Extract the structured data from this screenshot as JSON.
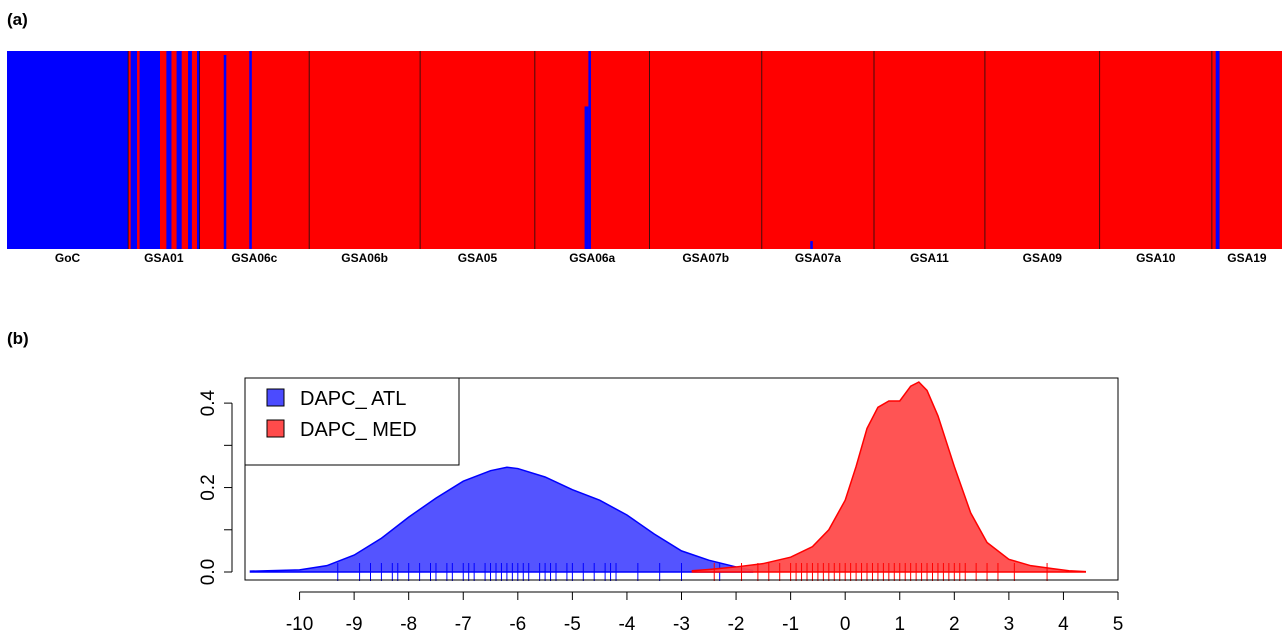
{
  "panels": {
    "a_label": "(a)",
    "b_label": "(b)"
  },
  "colors": {
    "atl": "#0000ff",
    "med": "#ff0000",
    "atl_fill": "#4b4bff",
    "med_fill": "#ff4b4b"
  },
  "chart_data": [
    {
      "type": "bar",
      "description": "structure barplot",
      "categories": [
        "GoC",
        "GSA01",
        "GSA06c",
        "GSA06b",
        "GSA05",
        "GSA06a",
        "GSA07b",
        "GSA07a",
        "GSA11",
        "GSA09",
        "GSA10",
        "GSA19"
      ],
      "ylim": [
        0,
        1
      ],
      "series": [
        {
          "name": "DAPC_ ATL",
          "color": "#0000ff"
        },
        {
          "name": "DAPC_ MED",
          "color": "#ff0000"
        }
      ],
      "atl_segments": [
        {
          "x0": 0.0,
          "x1": 0.095,
          "top": 1.0
        },
        {
          "x0": 0.097,
          "x1": 0.102,
          "top": 1.0
        },
        {
          "x0": 0.104,
          "x1": 0.12,
          "top": 1.0
        },
        {
          "x0": 0.125,
          "x1": 0.129,
          "top": 1.0
        },
        {
          "x0": 0.133,
          "x1": 0.137,
          "top": 1.0
        },
        {
          "x0": 0.142,
          "x1": 0.145,
          "top": 1.0
        },
        {
          "x0": 0.149,
          "x1": 0.151,
          "top": 1.0
        },
        {
          "x0": 0.17,
          "x1": 0.172,
          "top": 0.98
        },
        {
          "x0": 0.19,
          "x1": 0.192,
          "top": 1.0
        },
        {
          "x0": 0.453,
          "x1": 0.456,
          "top": 0.72
        },
        {
          "x0": 0.456,
          "x1": 0.458,
          "top": 1.0
        },
        {
          "x0": 0.63,
          "x1": 0.632,
          "top": 0.04
        },
        {
          "x0": 0.948,
          "x1": 0.951,
          "top": 1.0
        }
      ],
      "group_boundaries": [
        0.095,
        0.151,
        0.237,
        0.324,
        0.414,
        0.504,
        0.592,
        0.68,
        0.767,
        0.857,
        0.945
      ]
    },
    {
      "type": "area",
      "xlim": [
        -11,
        5
      ],
      "ylim": [
        0,
        0.45
      ],
      "xticks": [
        -10,
        -9,
        -8,
        -7,
        -6,
        -5,
        -4,
        -3,
        -2,
        -1,
        0,
        1,
        2,
        3,
        4,
        5
      ],
      "yticks": [
        0.0,
        0.2,
        0.4
      ],
      "ytick_labels": [
        "0.0",
        "0.2",
        "0.4"
      ],
      "legend_position": "top-left",
      "series": [
        {
          "name": "DAPC_ ATL",
          "x": [
            -10.9,
            -10.0,
            -9.5,
            -9.0,
            -8.5,
            -8.0,
            -7.5,
            -7.0,
            -6.5,
            -6.2,
            -6.0,
            -5.5,
            -5.0,
            -4.5,
            -4.0,
            -3.5,
            -3.0,
            -2.5,
            -2.0,
            -1.7
          ],
          "y": [
            0.002,
            0.005,
            0.015,
            0.04,
            0.08,
            0.13,
            0.175,
            0.215,
            0.24,
            0.248,
            0.245,
            0.225,
            0.195,
            0.17,
            0.135,
            0.09,
            0.05,
            0.028,
            0.012,
            0.004
          ],
          "rug": [
            -9.3,
            -8.9,
            -8.7,
            -8.5,
            -8.3,
            -8.2,
            -8.0,
            -7.8,
            -7.6,
            -7.5,
            -7.3,
            -7.2,
            -7.0,
            -6.9,
            -6.8,
            -6.6,
            -6.5,
            -6.4,
            -6.3,
            -6.2,
            -6.1,
            -6.0,
            -5.9,
            -5.8,
            -5.6,
            -5.5,
            -5.4,
            -5.3,
            -5.1,
            -5.0,
            -4.8,
            -4.6,
            -4.4,
            -4.3,
            -4.2,
            -3.8,
            -3.4,
            -3.0,
            -2.3
          ]
        },
        {
          "name": "DAPC_ MED",
          "x": [
            -2.8,
            -2.5,
            -2.0,
            -1.5,
            -1.0,
            -0.6,
            -0.3,
            0.0,
            0.2,
            0.4,
            0.6,
            0.8,
            1.0,
            1.2,
            1.35,
            1.5,
            1.7,
            2.0,
            2.3,
            2.6,
            3.0,
            3.4,
            3.8,
            4.1,
            4.4
          ],
          "y": [
            0.003,
            0.006,
            0.012,
            0.02,
            0.035,
            0.06,
            0.1,
            0.17,
            0.25,
            0.34,
            0.39,
            0.405,
            0.405,
            0.44,
            0.45,
            0.43,
            0.37,
            0.25,
            0.14,
            0.07,
            0.03,
            0.015,
            0.008,
            0.003,
            0.001
          ],
          "rug": [
            -2.4,
            -1.9,
            -1.6,
            -1.4,
            -1.2,
            -1.0,
            -0.9,
            -0.8,
            -0.7,
            -0.6,
            -0.5,
            -0.4,
            -0.3,
            -0.2,
            -0.1,
            0.0,
            0.1,
            0.2,
            0.3,
            0.4,
            0.5,
            0.6,
            0.7,
            0.8,
            0.9,
            1.0,
            1.1,
            1.2,
            1.3,
            1.4,
            1.5,
            1.6,
            1.7,
            1.8,
            1.9,
            2.0,
            2.1,
            2.2,
            2.4,
            2.6,
            2.8,
            3.1,
            3.7
          ]
        }
      ]
    }
  ]
}
